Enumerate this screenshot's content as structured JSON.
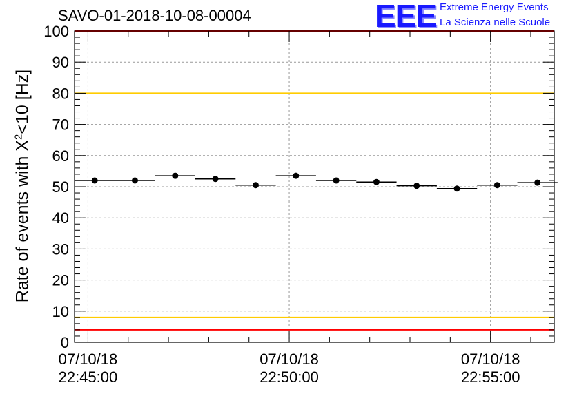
{
  "title": "SAVO-01-2018-10-08-00004",
  "logo": {
    "mark": "EEE",
    "line1": "Extreme Energy Events",
    "line2": "La Scienza nelle Scuole"
  },
  "chart_data": {
    "type": "scatter",
    "title": "SAVO-01-2018-10-08-00004",
    "xlabel": "",
    "ylabel_parts": [
      "Rate of events with X",
      "2",
      "<10 [Hz]"
    ],
    "ylim": [
      0,
      100
    ],
    "yticks": [
      0,
      10,
      20,
      30,
      40,
      50,
      60,
      70,
      80,
      90,
      100
    ],
    "xlim": [
      "07/10/18 22:44:40",
      "07/10/18 22:56:35"
    ],
    "xticks": [
      {
        "date": "07/10/18",
        "time": "22:45:00"
      },
      {
        "date": "07/10/18",
        "time": "22:50:00"
      },
      {
        "date": "07/10/18",
        "time": "22:55:00"
      }
    ],
    "grid": true,
    "bin_width_s": 60,
    "series": [
      {
        "x": [
          "22:45:10",
          "22:46:10",
          "22:47:10",
          "22:48:10",
          "22:49:10",
          "22:50:10",
          "22:51:10",
          "22:52:10",
          "22:53:10",
          "22:54:10",
          "22:55:10",
          "22:56:10"
        ],
        "y": [
          52.0,
          52.0,
          53.5,
          52.5,
          50.5,
          53.5,
          52.0,
          51.5,
          50.3,
          49.4,
          50.5,
          51.3
        ]
      }
    ],
    "reference_lines": [
      {
        "y": 100,
        "color": "#ff0000"
      },
      {
        "y": 80,
        "color": "#ffcc00"
      },
      {
        "y": 8,
        "color": "#ffcc00"
      },
      {
        "y": 4,
        "color": "#ff0000"
      }
    ]
  }
}
